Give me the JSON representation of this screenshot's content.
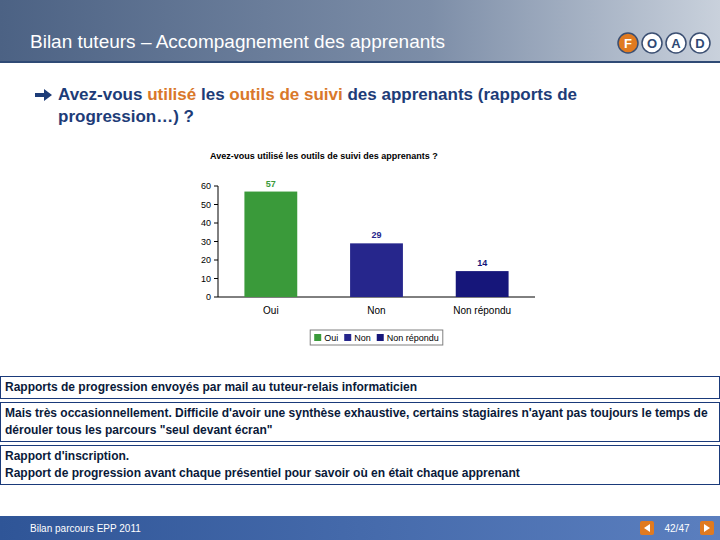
{
  "header": {
    "title": "Bilan tuteurs – Accompagnement des apprenants",
    "logo": [
      "F",
      "O",
      "A",
      "D"
    ]
  },
  "question": {
    "segments": [
      {
        "text": "Avez-vous ",
        "color": "#1d3c78"
      },
      {
        "text": "utilisé",
        "color": "#d9782a"
      },
      {
        "text": " les ",
        "color": "#1d3c78"
      },
      {
        "text": "outils de suivi",
        "color": "#d9782a"
      },
      {
        "text": " des apprenants (rapports de progression…) ?",
        "color": "#1d3c78"
      }
    ]
  },
  "chart_data": {
    "type": "bar",
    "title": "Avez-vous utilisé les outils de suivi des apprenants ?",
    "categories": [
      "Oui",
      "Non",
      "Non répondu"
    ],
    "values": [
      57,
      29,
      14
    ],
    "colors": [
      "#3a9a3a",
      "#26268c",
      "#16167a"
    ],
    "ylim": [
      0,
      60
    ],
    "yticks": [
      0,
      10,
      20,
      30,
      40,
      50,
      60
    ],
    "grid": false,
    "data_labels": true,
    "legend": "bottom"
  },
  "comments": [
    [
      "Rapports de progression envoyés par mail au tuteur-relais informaticien"
    ],
    [
      "Mais très occasionnellement. Difficile d'avoir une synthèse exhaustive, certains stagiaires n'ayant pas toujours le temps de dérouler tous les parcours \"seul devant écran\""
    ],
    [
      "Rapport d'inscription.",
      "Rapport de progression avant chaque présentiel pour savoir où en était chaque apprenant"
    ]
  ],
  "footer": {
    "text": "Bilan parcours EPP 2011",
    "page": "42/47"
  }
}
